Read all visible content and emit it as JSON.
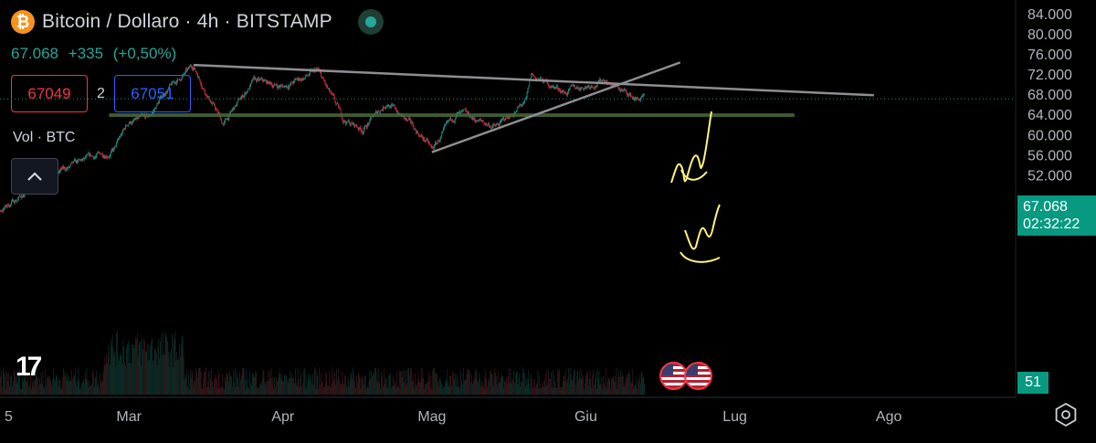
{
  "header": {
    "symbol_icon": "bitcoin-icon",
    "title": "Bitcoin / Dollaro · 4h · BITSTAMP",
    "last_price": "67.068",
    "change": "+335",
    "change_pct": "(+0,50%)"
  },
  "trade": {
    "sell_price": "67049",
    "spread": "2",
    "buy_price": "67051"
  },
  "volume_indicator": {
    "label": "Vol · BTC",
    "value": "51"
  },
  "price_tag": {
    "price": "67.068",
    "countdown": "02:32:22"
  },
  "colors": {
    "background": "#000000",
    "up": "#26a69a",
    "down": "#f23645",
    "support_zone": "#4a6b3c",
    "trendline": "#8e8e93",
    "annotation": "#fff37a"
  },
  "chart_data": {
    "type": "candlestick",
    "title": "Bitcoin / Dollaro · 4h · BITSTAMP",
    "xlabel": "",
    "ylabel": "",
    "x_ticks": [
      "5",
      "Mar",
      "Apr",
      "Mag",
      "Giu",
      "Lug",
      "Ago"
    ],
    "y_ticks": [
      "84.000",
      "80.000",
      "76.000",
      "72.000",
      "68.000",
      "64.000",
      "60.000",
      "56.000",
      "52.000"
    ],
    "ylim": [
      50500,
      85000
    ],
    "grid": false,
    "last_price": 67068,
    "anchors": [
      {
        "date": "2024-02-01",
        "price": 42800
      },
      {
        "date": "2024-02-14",
        "price": 51800
      },
      {
        "date": "2024-02-27",
        "price": 57000
      },
      {
        "date": "2024-03-01",
        "price": 62500
      },
      {
        "date": "2024-03-05",
        "price": 63000
      },
      {
        "date": "2024-03-08",
        "price": 68200
      },
      {
        "date": "2024-03-14",
        "price": 73500
      },
      {
        "date": "2024-03-20",
        "price": 62000
      },
      {
        "date": "2024-03-26",
        "price": 70500
      },
      {
        "date": "2024-04-01",
        "price": 69500
      },
      {
        "date": "2024-04-08",
        "price": 72500
      },
      {
        "date": "2024-04-13",
        "price": 63000
      },
      {
        "date": "2024-04-17",
        "price": 61000
      },
      {
        "date": "2024-04-22",
        "price": 66500
      },
      {
        "date": "2024-04-30",
        "price": 58500
      },
      {
        "date": "2024-05-01",
        "price": 56800
      },
      {
        "date": "2024-05-06",
        "price": 64000
      },
      {
        "date": "2024-05-14",
        "price": 61500
      },
      {
        "date": "2024-05-20",
        "price": 66500
      },
      {
        "date": "2024-05-21",
        "price": 71500
      },
      {
        "date": "2024-05-28",
        "price": 68500
      },
      {
        "date": "2024-06-05",
        "price": 71000
      },
      {
        "date": "2024-06-07",
        "price": 69500
      },
      {
        "date": "2024-06-11",
        "price": 67000
      },
      {
        "date": "2024-06-13",
        "price": 67068
      }
    ],
    "drawings": {
      "resistance_line": [
        {
          "date": "2024-03-14",
          "price": 73800
        },
        {
          "date": "2024-07-29",
          "price": 67800
        }
      ],
      "support_trendline": [
        {
          "date": "2024-05-01",
          "price": 56500
        },
        {
          "date": "2024-06-20",
          "price": 74300
        }
      ],
      "support_zone": {
        "from_date": "2024-02-26",
        "to_date": "2024-07-13",
        "price_low": 63500,
        "price_high": 64200
      }
    }
  }
}
